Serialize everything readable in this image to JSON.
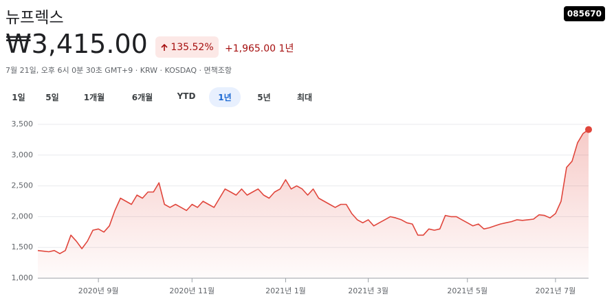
{
  "header": {
    "title": "뉴프렉스",
    "ticker": "085670",
    "price": "₩3,415.00",
    "change_pct": "135.52%",
    "change_abs": "+1,965.00",
    "period": "1년",
    "info": "7월 21일, 오후 6시 0분 30초 GMT+9 · KRW · KOSDAQ · 면책조항"
  },
  "tabs": {
    "items": [
      "1일",
      "5일",
      "1개월",
      "6개월",
      "YTD",
      "1년",
      "5년",
      "최대"
    ],
    "selected": 5
  },
  "chart_data": {
    "type": "line",
    "categories": [
      null,
      null,
      null,
      null,
      null,
      null,
      null,
      null,
      null,
      null,
      null,
      "2020년 9월",
      null,
      null,
      null,
      null,
      null,
      null,
      null,
      null,
      null,
      null,
      null,
      null,
      null,
      null,
      null,
      null,
      "2020년 11월",
      null,
      null,
      null,
      null,
      null,
      null,
      null,
      null,
      null,
      null,
      null,
      null,
      null,
      null,
      null,
      null,
      "2021년 1월",
      null,
      null,
      null,
      null,
      null,
      null,
      null,
      null,
      null,
      null,
      null,
      null,
      null,
      null,
      "2021년 3월",
      null,
      null,
      null,
      null,
      null,
      null,
      null,
      null,
      null,
      null,
      null,
      null,
      null,
      null,
      null,
      null,
      null,
      "2021년 5월",
      null,
      null,
      null,
      null,
      null,
      null,
      null,
      null,
      null,
      null,
      null,
      null,
      null,
      null,
      null,
      "2021년 7월",
      null,
      null,
      null,
      null,
      null,
      null
    ],
    "series": [
      {
        "color": "#e0453b",
        "values": [
          1450,
          1440,
          1430,
          1450,
          1400,
          1450,
          1700,
          1600,
          1480,
          1600,
          1780,
          1800,
          1750,
          1850,
          2100,
          2300,
          2250,
          2200,
          2350,
          2300,
          2400,
          2400,
          2550,
          2200,
          2150,
          2200,
          2150,
          2100,
          2200,
          2150,
          2250,
          2200,
          2150,
          2300,
          2450,
          2400,
          2350,
          2450,
          2350,
          2400,
          2450,
          2350,
          2300,
          2400,
          2450,
          2600,
          2450,
          2500,
          2450,
          2350,
          2450,
          2300,
          2250,
          2200,
          2150,
          2200,
          2200,
          2050,
          1950,
          1900,
          1950,
          1850,
          1900,
          1950,
          2000,
          1980,
          1950,
          1900,
          1880,
          1700,
          1700,
          1800,
          1780,
          1800,
          2020,
          2000,
          2000,
          1950,
          1900,
          1850,
          1880,
          1800,
          1820,
          1850,
          1880,
          1900,
          1920,
          1950,
          1940,
          1950,
          1960,
          2030,
          2020,
          1980,
          2050,
          2250,
          2800,
          2900,
          3200,
          3350,
          3415
        ]
      }
    ],
    "ylim": [
      1000,
      3600
    ],
    "yticks": [
      {
        "value": 1000,
        "label": "1,000"
      },
      {
        "value": 1500,
        "label": "1,500"
      },
      {
        "value": 2000,
        "label": "2,000"
      },
      {
        "value": 2500,
        "label": "2,500"
      },
      {
        "value": 3000,
        "label": "3,000"
      },
      {
        "value": 3500,
        "label": "3,500"
      }
    ],
    "grid": true
  }
}
